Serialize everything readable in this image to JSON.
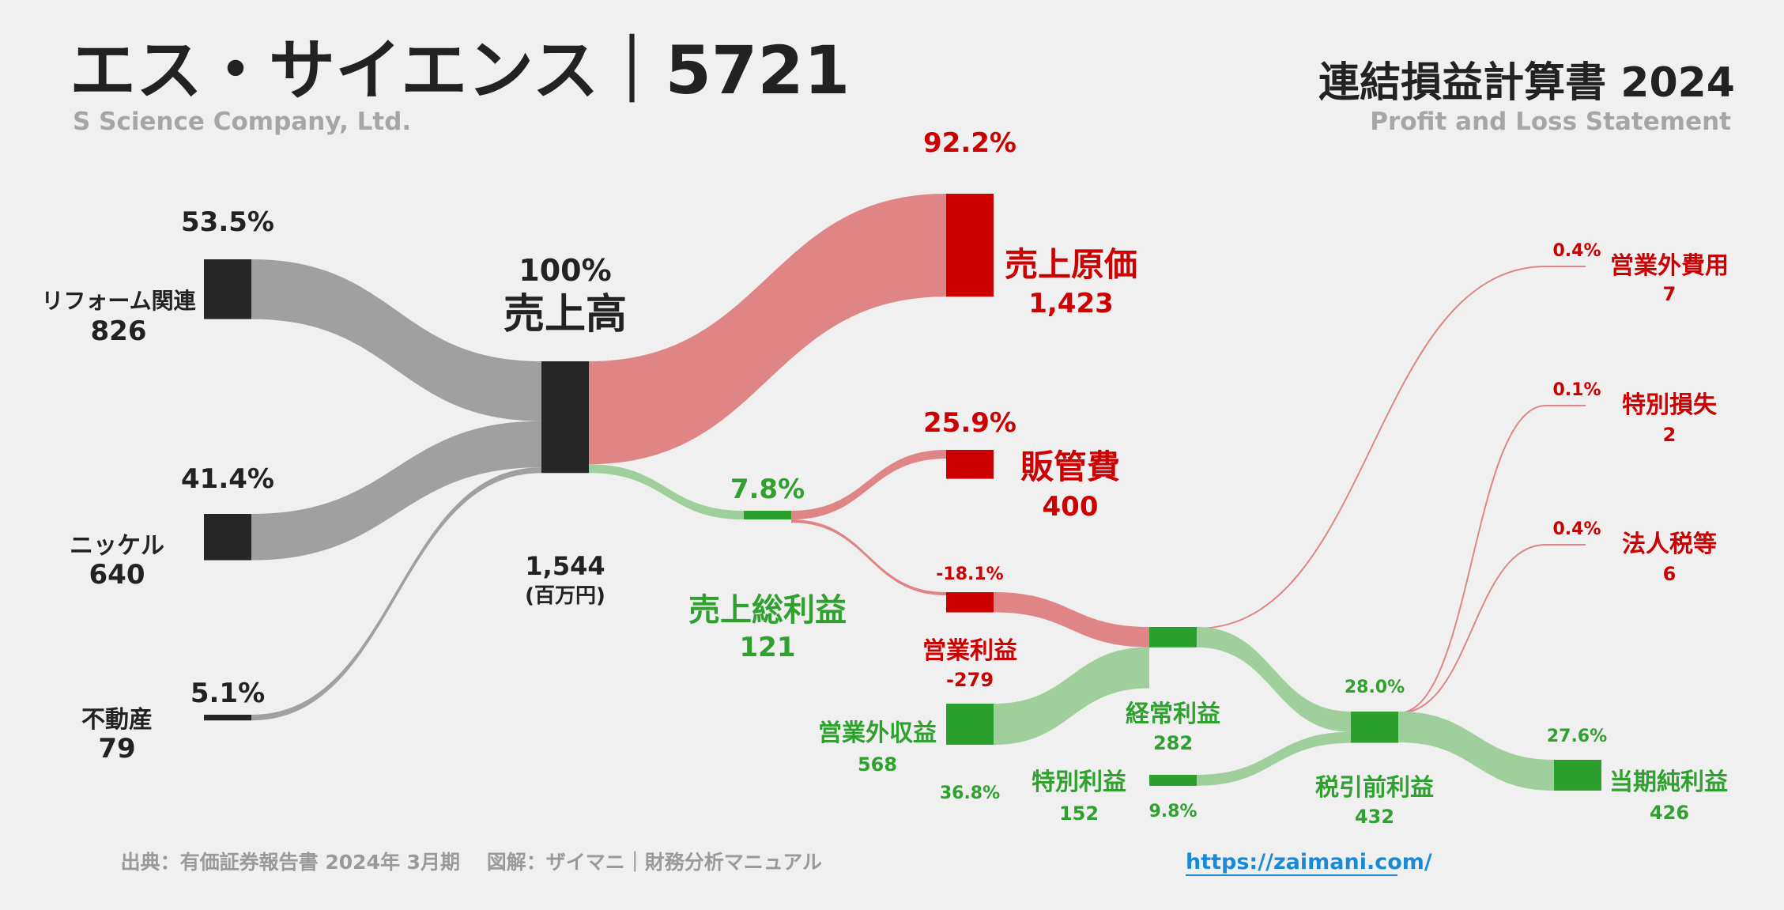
{
  "header": {
    "company": "エス・サイエンス｜5721",
    "company_en": "S Science Company, Ltd.",
    "statement": "連結損益計算書 2024",
    "statement_en": "Profit and Loss Statement"
  },
  "footer": {
    "source": "出典：有価証券報告書 2024年 3月期　 図解：ザイマニ｜財務分析マニュアル",
    "url": "https://zaimani.com/"
  },
  "colors": {
    "dark": "#262626",
    "red": "#cc0000",
    "green": "#2ca02c",
    "gray_flow": "#a0a0a0",
    "red_flow": "#e08585",
    "green_flow": "#9fcf9a"
  },
  "chart_data": {
    "type": "sankey",
    "unit": "(百万円)",
    "nodes": [
      {
        "id": "reform",
        "label": "リフォーム関連",
        "value": 826,
        "value_label": "826",
        "pct": "53.5%",
        "color": "dark"
      },
      {
        "id": "nickel",
        "label": "ニッケル",
        "value": 640,
        "value_label": "640",
        "pct": "41.4%",
        "color": "dark"
      },
      {
        "id": "realestate",
        "label": "不動産",
        "value": 79,
        "value_label": "79",
        "pct": "5.1%",
        "color": "dark"
      },
      {
        "id": "revenue",
        "label": "売上高",
        "value": 1544,
        "value_label": "1,544",
        "pct": "100%",
        "color": "dark"
      },
      {
        "id": "cogs",
        "label": "売上原価",
        "value": 1423,
        "value_label": "1,423",
        "pct": "92.2%",
        "color": "red"
      },
      {
        "id": "gross",
        "label": "売上総利益",
        "value": 121,
        "value_label": "121",
        "pct": "7.8%",
        "color": "green"
      },
      {
        "id": "sga",
        "label": "販管費",
        "value": 400,
        "value_label": "400",
        "pct": "25.9%",
        "color": "red"
      },
      {
        "id": "op",
        "label": "営業利益",
        "value": -279,
        "value_label": "-279",
        "pct": "-18.1%",
        "color": "red"
      },
      {
        "id": "nonop_inc",
        "label": "営業外収益",
        "value": 568,
        "value_label": "568",
        "pct": "36.8%",
        "color": "green"
      },
      {
        "id": "ordinary",
        "label": "経常利益",
        "value": 282,
        "value_label": "282",
        "pct": "",
        "color": "green"
      },
      {
        "id": "extra_inc",
        "label": "特別利益",
        "value": 152,
        "value_label": "152",
        "pct": "9.8%",
        "color": "green"
      },
      {
        "id": "nonop_exp",
        "label": "営業外費用",
        "value": 7,
        "value_label": "7",
        "pct": "0.4%",
        "color": "red"
      },
      {
        "id": "extra_loss",
        "label": "特別損失",
        "value": 2,
        "value_label": "2",
        "pct": "0.1%",
        "color": "red"
      },
      {
        "id": "pretax",
        "label": "税引前利益",
        "value": 432,
        "value_label": "432",
        "pct": "28.0%",
        "color": "green"
      },
      {
        "id": "tax",
        "label": "法人税等",
        "value": 6,
        "value_label": "6",
        "pct": "0.4%",
        "color": "red"
      },
      {
        "id": "net",
        "label": "当期純利益",
        "value": 426,
        "value_label": "426",
        "pct": "27.6%",
        "color": "green"
      }
    ],
    "links": [
      {
        "source": "reform",
        "target": "revenue",
        "value": 826
      },
      {
        "source": "nickel",
        "target": "revenue",
        "value": 640
      },
      {
        "source": "realestate",
        "target": "revenue",
        "value": 79
      },
      {
        "source": "revenue",
        "target": "cogs",
        "value": 1423
      },
      {
        "source": "revenue",
        "target": "gross",
        "value": 121
      },
      {
        "source": "gross",
        "target": "sga",
        "value": 121
      },
      {
        "source": "gross",
        "target": "op",
        "value": 279
      },
      {
        "source": "op",
        "target": "ordinary",
        "value": 279
      },
      {
        "source": "nonop_inc",
        "target": "ordinary",
        "value": 568
      },
      {
        "source": "ordinary",
        "target": "nonop_exp",
        "value": 7
      },
      {
        "source": "ordinary",
        "target": "pretax",
        "value": 282
      },
      {
        "source": "extra_inc",
        "target": "pretax",
        "value": 152
      },
      {
        "source": "pretax",
        "target": "extra_loss",
        "value": 2
      },
      {
        "source": "pretax",
        "target": "tax",
        "value": 6
      },
      {
        "source": "pretax",
        "target": "net",
        "value": 426
      }
    ]
  }
}
